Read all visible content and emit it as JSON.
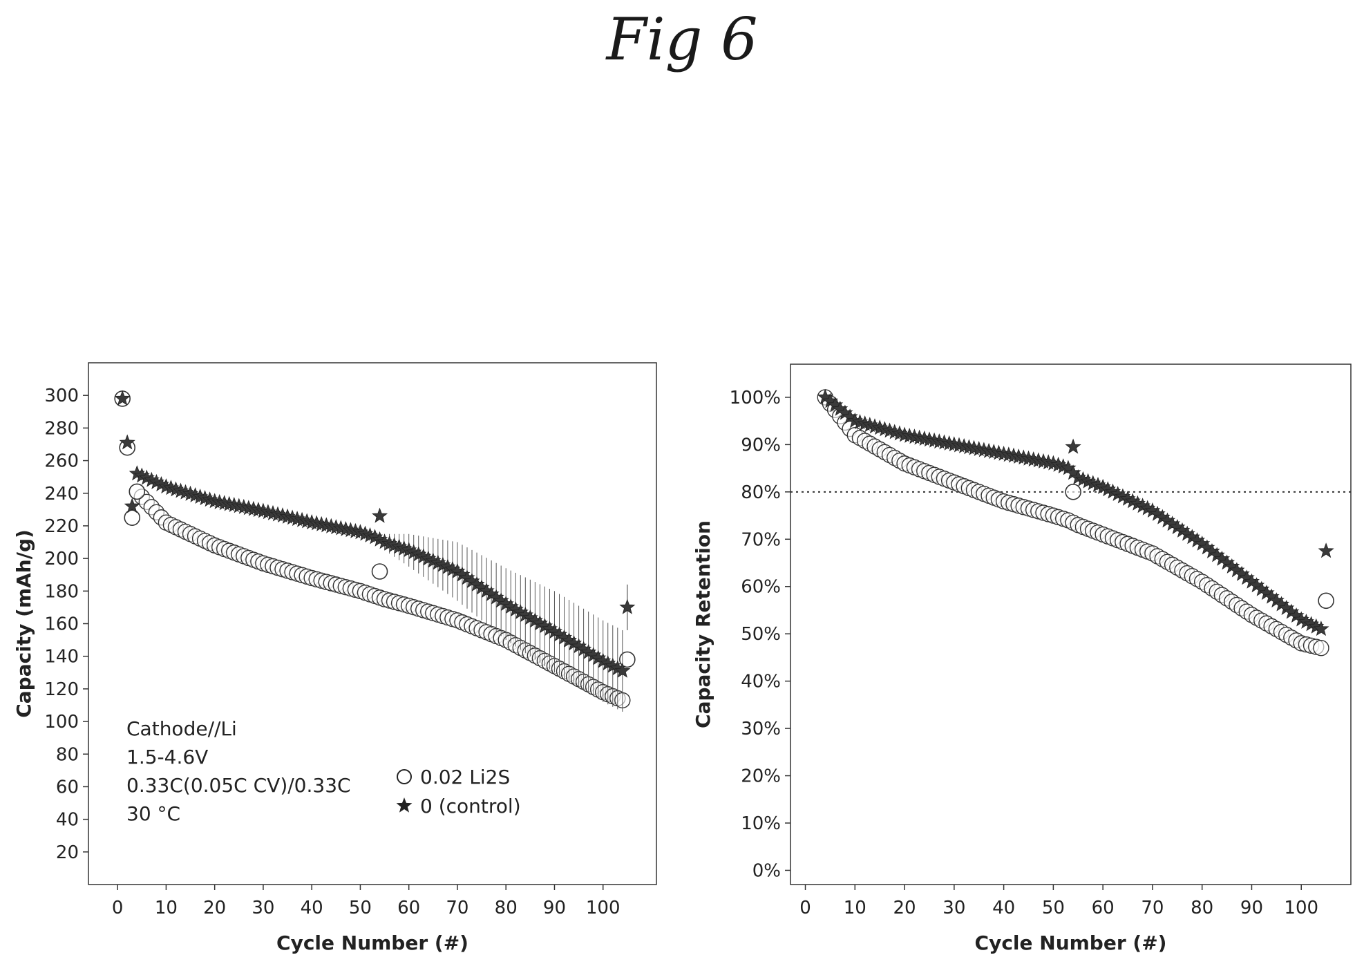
{
  "figure": {
    "title": "Fig 6"
  },
  "chart_data": [
    {
      "type": "scatter",
      "xlabel": "Cycle Number (#)",
      "ylabel": "Capacity (mAh/g)",
      "xlim": [
        -6,
        111
      ],
      "ylim": [
        0,
        320
      ],
      "x_ticks": [
        0,
        10,
        20,
        30,
        40,
        50,
        60,
        70,
        80,
        90,
        100
      ],
      "y_ticks": [
        20,
        40,
        60,
        80,
        100,
        120,
        140,
        160,
        180,
        200,
        220,
        240,
        260,
        280,
        300
      ],
      "annotations": [
        "Cathode//Li",
        "1.5-4.6V",
        "0.33C(0.05C CV)/0.33C",
        "30 °C"
      ],
      "legend": "bottom-right",
      "series": [
        {
          "name": "0.02 Li2S",
          "marker": "circle",
          "points": [
            [
              1,
              298
            ],
            [
              2,
              268
            ],
            [
              3,
              225
            ],
            [
              4,
              241
            ],
            [
              54,
              192
            ],
            [
              105,
              138
            ]
          ],
          "curve": [
            [
              4,
              241
            ],
            [
              10,
              222
            ],
            [
              20,
              208
            ],
            [
              30,
              197
            ],
            [
              40,
              188
            ],
            [
              50,
              180
            ],
            [
              53,
              177
            ],
            [
              55,
              175
            ],
            [
              60,
              171
            ],
            [
              70,
              162
            ],
            [
              80,
              150
            ],
            [
              90,
              134
            ],
            [
              100,
              118
            ],
            [
              104,
              113
            ]
          ]
        },
        {
          "name": "0 (control)",
          "marker": "star",
          "points": [
            [
              1,
              298
            ],
            [
              2,
              271
            ],
            [
              3,
              232
            ],
            [
              54,
              226
            ],
            [
              105,
              170
            ]
          ],
          "curve": [
            [
              4,
              252
            ],
            [
              10,
              244
            ],
            [
              20,
              235
            ],
            [
              30,
              229
            ],
            [
              40,
              222
            ],
            [
              50,
              216
            ],
            [
              53,
              213
            ],
            [
              55,
              210
            ],
            [
              60,
              205
            ],
            [
              70,
              192
            ],
            [
              80,
              172
            ],
            [
              90,
              155
            ],
            [
              100,
              137
            ],
            [
              104,
              131
            ]
          ],
          "error_bars": [
            [
              55,
              5
            ],
            [
              60,
              10
            ],
            [
              70,
              18
            ],
            [
              80,
              22
            ],
            [
              90,
              25
            ],
            [
              100,
              25
            ],
            [
              104,
              25
            ],
            [
              105,
              14
            ]
          ]
        }
      ]
    },
    {
      "type": "scatter",
      "xlabel": "Cycle Number (#)",
      "ylabel": "Capacity Retention",
      "xlim": [
        -3,
        110
      ],
      "ylim": [
        -3,
        107
      ],
      "x_ticks": [
        0,
        10,
        20,
        30,
        40,
        50,
        60,
        70,
        80,
        90,
        100
      ],
      "y_ticks": [
        "0%",
        "10%",
        "20%",
        "30%",
        "40%",
        "50%",
        "60%",
        "70%",
        "80%",
        "90%",
        "100%"
      ],
      "y_tick_values": [
        0,
        10,
        20,
        30,
        40,
        50,
        60,
        70,
        80,
        90,
        100
      ],
      "reference_line": {
        "y": 80,
        "style": "dotted"
      },
      "series": [
        {
          "name": "0.02 Li2S",
          "marker": "circle",
          "points": [
            [
              54,
              80
            ],
            [
              105,
              57
            ]
          ],
          "curve": [
            [
              4,
              100
            ],
            [
              10,
              92
            ],
            [
              20,
              86
            ],
            [
              30,
              82
            ],
            [
              40,
              78
            ],
            [
              50,
              75
            ],
            [
              53,
              74
            ],
            [
              55,
              73
            ],
            [
              60,
              71
            ],
            [
              70,
              67
            ],
            [
              80,
              61
            ],
            [
              90,
              54
            ],
            [
              100,
              48
            ],
            [
              104,
              47
            ]
          ]
        },
        {
          "name": "0 (control)",
          "marker": "star",
          "points": [
            [
              54,
              89.5
            ],
            [
              105,
              67.5
            ]
          ],
          "curve": [
            [
              4,
              100
            ],
            [
              10,
              95
            ],
            [
              20,
              92
            ],
            [
              30,
              90
            ],
            [
              40,
              88
            ],
            [
              50,
              86
            ],
            [
              53,
              85
            ],
            [
              55,
              83
            ],
            [
              60,
              81
            ],
            [
              70,
              76
            ],
            [
              80,
              69
            ],
            [
              90,
              61
            ],
            [
              100,
              53
            ],
            [
              104,
              51
            ]
          ]
        }
      ]
    }
  ]
}
